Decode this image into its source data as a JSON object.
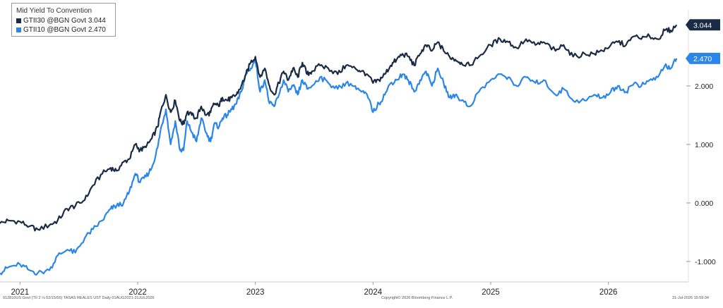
{
  "chart_data": {
    "type": "line",
    "title": "Mid Yield To Convention",
    "yticks": [
      -1,
      0,
      1,
      2
    ],
    "ytick_labels": [
      "-1.000",
      "0.000",
      "1.000",
      "2.000"
    ],
    "ylim": [
      -1.35,
      3.3
    ],
    "xticks": [
      2021,
      2022,
      2023,
      2024,
      2025,
      2026
    ],
    "xtick_labels": [
      "2021",
      "2022",
      "2023",
      "2024",
      "2025",
      "2026"
    ],
    "xlim": [
      2020.83,
      2026.65
    ],
    "grid": false,
    "legend_position": "top-left",
    "series": [
      {
        "name": "GTII30 @BGN Govt 3.044",
        "color": "#1a2b45",
        "last_value": "3.044",
        "x": [
          2020.83,
          2020.9,
          2021.0,
          2021.08,
          2021.15,
          2021.25,
          2021.32,
          2021.4,
          2021.47,
          2021.55,
          2021.62,
          2021.7,
          2021.77,
          2021.82,
          2021.88,
          2021.93,
          2021.98,
          2022.02,
          2022.07,
          2022.12,
          2022.17,
          2022.2,
          2022.24,
          2022.28,
          2022.32,
          2022.36,
          2022.39,
          2022.42,
          2022.46,
          2022.5,
          2022.54,
          2022.58,
          2022.62,
          2022.65,
          2022.69,
          2022.72,
          2022.76,
          2022.8,
          2022.84,
          2022.88,
          2022.92,
          2022.96,
          2023.0,
          2023.04,
          2023.08,
          2023.12,
          2023.16,
          2023.2,
          2023.24,
          2023.28,
          2023.32,
          2023.36,
          2023.4,
          2023.44,
          2023.48,
          2023.55,
          2023.62,
          2023.7,
          2023.77,
          2023.85,
          2023.9,
          2023.95,
          2024.0,
          2024.05,
          2024.1,
          2024.15,
          2024.2,
          2024.25,
          2024.3,
          2024.35,
          2024.4,
          2024.45,
          2024.5,
          2024.55,
          2024.6,
          2024.65,
          2024.7,
          2024.75,
          2024.82,
          2024.9,
          2025.0,
          2025.08,
          2025.15,
          2025.22,
          2025.3,
          2025.38,
          2025.45,
          2025.55,
          2025.62,
          2025.7,
          2025.8,
          2025.88,
          2025.95,
          2026.02,
          2026.08,
          2026.15,
          2026.22,
          2026.28,
          2026.35,
          2026.42,
          2026.48,
          2026.53,
          2026.58
        ],
        "y": [
          -0.35,
          -0.3,
          -0.32,
          -0.4,
          -0.45,
          -0.38,
          -0.3,
          -0.1,
          -0.05,
          0.05,
          0.3,
          0.5,
          0.6,
          0.55,
          0.7,
          0.75,
          1.0,
          0.9,
          0.95,
          1.1,
          1.3,
          1.6,
          1.85,
          1.55,
          1.75,
          1.4,
          1.35,
          1.55,
          1.5,
          1.45,
          1.65,
          1.5,
          1.55,
          1.7,
          1.65,
          1.8,
          1.75,
          1.8,
          1.85,
          2.0,
          2.2,
          2.4,
          2.5,
          2.15,
          2.3,
          2.0,
          1.85,
          2.05,
          2.25,
          2.1,
          2.3,
          2.15,
          2.4,
          2.2,
          2.25,
          2.35,
          2.3,
          2.2,
          2.35,
          2.3,
          2.25,
          2.2,
          2.05,
          2.1,
          2.2,
          2.35,
          2.45,
          2.55,
          2.5,
          2.35,
          2.55,
          2.7,
          2.6,
          2.75,
          2.6,
          2.5,
          2.45,
          2.4,
          2.35,
          2.5,
          2.7,
          2.8,
          2.75,
          2.65,
          2.8,
          2.7,
          2.75,
          2.6,
          2.7,
          2.5,
          2.55,
          2.55,
          2.6,
          2.7,
          2.75,
          2.7,
          2.85,
          2.8,
          2.85,
          2.8,
          2.95,
          2.95,
          3.044
        ]
      },
      {
        "name": "GTII10 @BGN Govt 2.470",
        "color": "#2b86e8",
        "last_value": "2.470",
        "x": [
          2020.83,
          2020.9,
          2021.0,
          2021.08,
          2021.15,
          2021.25,
          2021.32,
          2021.4,
          2021.47,
          2021.55,
          2021.62,
          2021.7,
          2021.77,
          2021.82,
          2021.88,
          2021.93,
          2021.98,
          2022.02,
          2022.07,
          2022.12,
          2022.17,
          2022.2,
          2022.24,
          2022.28,
          2022.32,
          2022.36,
          2022.39,
          2022.42,
          2022.46,
          2022.5,
          2022.54,
          2022.58,
          2022.62,
          2022.65,
          2022.69,
          2022.72,
          2022.76,
          2022.8,
          2022.84,
          2022.88,
          2022.92,
          2022.96,
          2023.0,
          2023.04,
          2023.08,
          2023.12,
          2023.16,
          2023.2,
          2023.24,
          2023.28,
          2023.32,
          2023.36,
          2023.4,
          2023.44,
          2023.48,
          2023.55,
          2023.62,
          2023.7,
          2023.77,
          2023.85,
          2023.9,
          2023.95,
          2024.0,
          2024.05,
          2024.1,
          2024.15,
          2024.2,
          2024.25,
          2024.3,
          2024.35,
          2024.4,
          2024.45,
          2024.5,
          2024.55,
          2024.6,
          2024.65,
          2024.7,
          2024.75,
          2024.82,
          2024.9,
          2025.0,
          2025.08,
          2025.15,
          2025.22,
          2025.3,
          2025.38,
          2025.45,
          2025.55,
          2025.62,
          2025.7,
          2025.8,
          2025.88,
          2025.95,
          2026.02,
          2026.08,
          2026.15,
          2026.22,
          2026.28,
          2026.35,
          2026.42,
          2026.48,
          2026.53,
          2026.58
        ],
        "y": [
          -1.2,
          -1.1,
          -1.05,
          -1.15,
          -1.2,
          -1.15,
          -0.9,
          -0.8,
          -0.85,
          -0.6,
          -0.45,
          -0.3,
          -0.1,
          -0.05,
          0.0,
          0.2,
          0.5,
          0.35,
          0.45,
          0.6,
          0.95,
          1.3,
          1.6,
          1.0,
          1.4,
          0.9,
          0.9,
          1.4,
          1.2,
          1.05,
          1.45,
          1.2,
          1.05,
          1.35,
          1.3,
          1.45,
          1.5,
          1.6,
          1.7,
          1.9,
          2.2,
          2.3,
          2.45,
          1.9,
          2.1,
          1.7,
          1.65,
          1.85,
          2.1,
          1.9,
          2.0,
          1.85,
          2.1,
          1.95,
          2.0,
          2.15,
          2.05,
          1.95,
          2.05,
          2.0,
          1.9,
          1.85,
          1.55,
          1.7,
          1.85,
          2.05,
          2.1,
          2.2,
          2.1,
          1.9,
          2.1,
          2.25,
          2.0,
          2.3,
          2.05,
          1.8,
          1.85,
          1.75,
          1.65,
          1.9,
          2.1,
          2.2,
          2.15,
          2.0,
          2.15,
          2.05,
          2.1,
          1.85,
          1.95,
          1.75,
          1.75,
          1.85,
          1.8,
          1.9,
          2.0,
          1.9,
          2.05,
          2.0,
          2.1,
          2.15,
          2.35,
          2.3,
          2.47
        ]
      }
    ]
  },
  "footer": {
    "left": "912810US Govt (TII 2 ⅛ 02/15/56) TASAS REALES UST Daily 01AUG2021-31JUL2026",
    "center": "Copyright© 2026 Bloomberg Finance L.P.",
    "right": "31-Jul-2026 15:59:34"
  }
}
